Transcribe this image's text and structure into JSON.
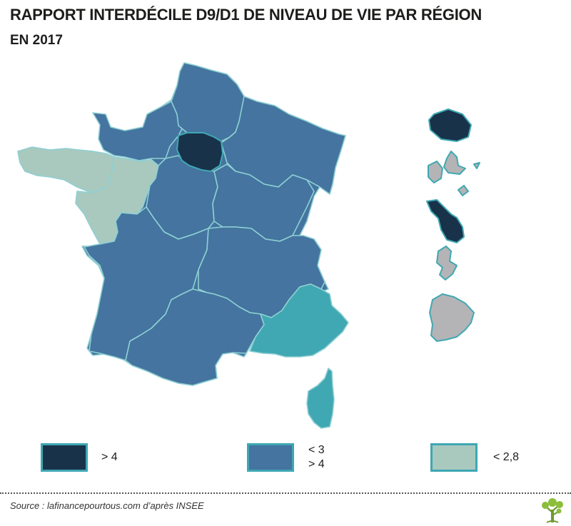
{
  "title": "RAPPORT INTERDÉCILE D9/D1 DE NIVEAU DE VIE PAR RÉGION",
  "subtitle": "EN 2017",
  "colors": {
    "dark": "#18324a",
    "medium": "#44749f",
    "light": "#a9c9bf",
    "teal": "#40a8b2",
    "grey": "#b4b4b6",
    "border": "#8ecfd3"
  },
  "legend": [
    {
      "label": "> 4",
      "color": "#18324a"
    },
    {
      "label": "< 3\n> 4",
      "color": "#44749f"
    },
    {
      "label": "< 2,8",
      "color": "#a9c9bf"
    }
  ],
  "source": "Source : lafinancepourtous.com d’après INSEE",
  "logo_icon": "tree-icon"
}
